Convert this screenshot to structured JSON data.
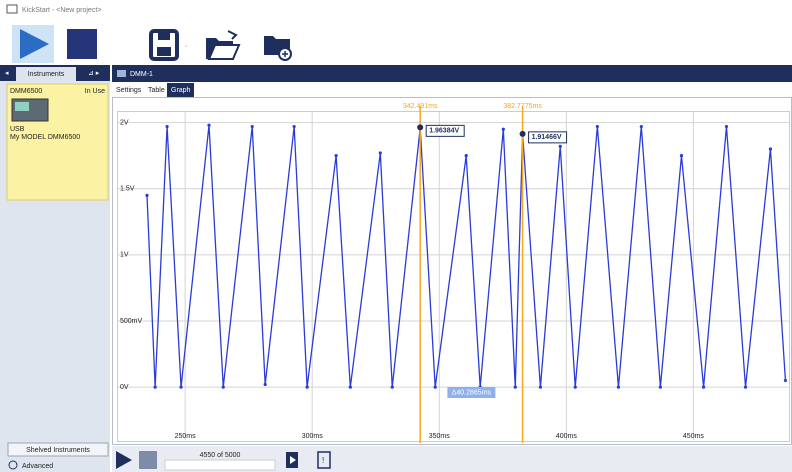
{
  "window_title": "KickStart - <New project>",
  "sidebar": {
    "tab": "Instruments",
    "instrument": {
      "name": "DMM6500",
      "status": "In Use",
      "connection": "USB",
      "model": "My MODEL DMM6500"
    },
    "shelved": "Shelved Instruments",
    "advanced": "Advanced"
  },
  "panel": {
    "title": "DMM-1",
    "tabs": [
      "Settings",
      "Table",
      "Graph"
    ],
    "progress": "4550 of 5000"
  },
  "chart_data": {
    "type": "line",
    "x": [
      235.0,
      238.2,
      242.9,
      248.4,
      259.4,
      265.0,
      276.4,
      281.5,
      292.9,
      298.0,
      309.4,
      315.0,
      326.8,
      331.5,
      342.5,
      348.4,
      360.6,
      366.1,
      375.2,
      379.9,
      382.8,
      389.8,
      397.6,
      403.5,
      412.2,
      420.5,
      429.5,
      437.0,
      445.3,
      454.0,
      463.0,
      470.5,
      480.3,
      486.2
    ],
    "values": [
      1.45,
      0.0,
      1.97,
      0.0,
      1.98,
      0.0,
      1.97,
      0.02,
      1.97,
      0.0,
      1.75,
      0.0,
      1.77,
      0.0,
      1.96,
      0.0,
      1.75,
      0.0,
      1.95,
      0.0,
      1.91,
      0.0,
      1.82,
      0.0,
      1.97,
      0.0,
      1.97,
      0.0,
      1.75,
      0.0,
      1.97,
      0.0,
      1.8,
      0.05
    ],
    "color": "#2a3bd8",
    "xlim": [
      235,
      488
    ],
    "ylim": [
      -0.4,
      2.08
    ],
    "xticks": [
      {
        "value": 250,
        "label": "250ms"
      },
      {
        "value": 300,
        "label": "300ms"
      },
      {
        "value": 350,
        "label": "350ms"
      },
      {
        "value": 400,
        "label": "400ms"
      },
      {
        "value": 450,
        "label": "450ms"
      }
    ],
    "yticks": [
      {
        "value": 0,
        "label": "0V"
      },
      {
        "value": 0.5,
        "label": "500mV"
      },
      {
        "value": 1,
        "label": "1V"
      },
      {
        "value": 1.5,
        "label": "1.5V"
      },
      {
        "value": 2,
        "label": "2V"
      }
    ],
    "grid": true,
    "cursor_color": "#f5a623",
    "cursors": [
      {
        "x": 342.491,
        "x_label": "342.491ms",
        "value": 1.96384,
        "value_label": "1.96384V"
      },
      {
        "x": 382.7775,
        "x_label": "382.7775ms",
        "value": 1.91466,
        "value_label": "1.91466V"
      }
    ],
    "cursor_delta": "Δ40.2865ms"
  }
}
